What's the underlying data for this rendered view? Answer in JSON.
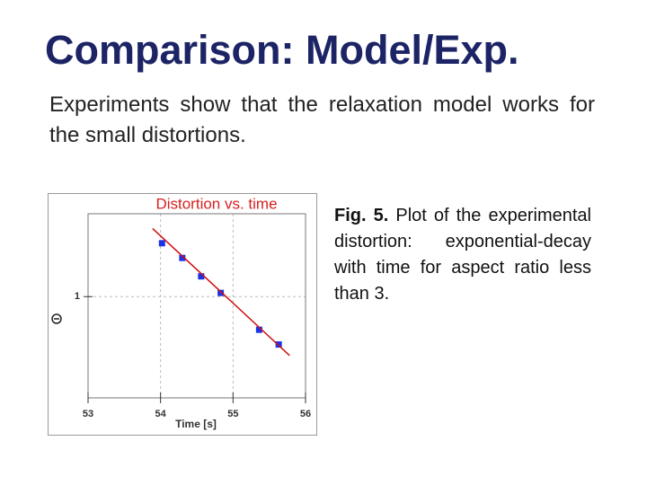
{
  "header": {
    "title": "Comparison: Model/Exp."
  },
  "body": {
    "text": "Experiments show that the relaxation model works for the small distortions."
  },
  "figure": {
    "caption": {
      "label": "Fig. 5.",
      "text": "Plot of the experimental distortion: exponential-decay with time for aspect ratio less than 3."
    },
    "chart_data": {
      "type": "scatter",
      "title": "Distortion vs. time",
      "x_label": "Time [s]",
      "xlim": [
        53,
        56
      ],
      "xticks": [
        53,
        54,
        55,
        56
      ],
      "ylim": [
        0.45,
        1.45
      ],
      "yticks": [
        1
      ],
      "grid": true,
      "series": [
        {
          "color": "#1a33e6",
          "marker": "square",
          "x": [
            54.02,
            54.3,
            54.56,
            54.83,
            55.36,
            55.63
          ],
          "values": [
            1.29,
            1.21,
            1.11,
            1.02,
            0.82,
            0.74
          ]
        },
        {
          "color": "#cc1111",
          "marker": "none",
          "x": [
            53.89,
            55.78
          ],
          "values": [
            1.37,
            0.68
          ]
        }
      ]
    }
  }
}
